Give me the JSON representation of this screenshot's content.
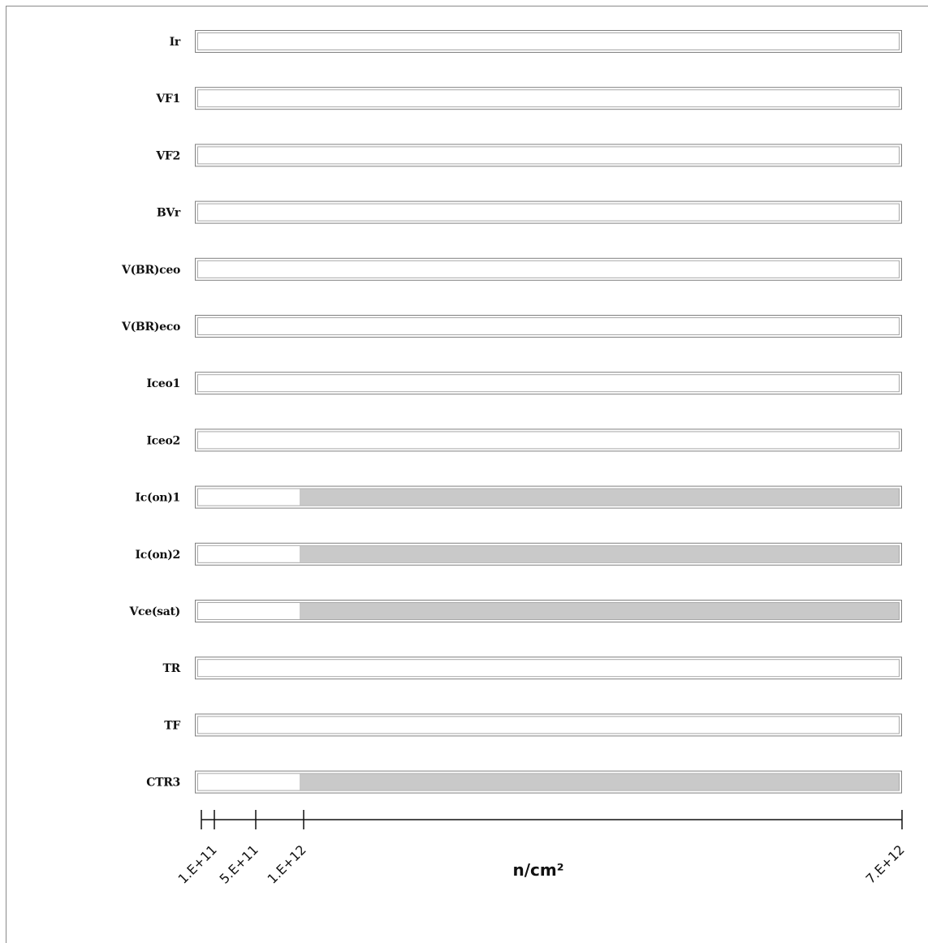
{
  "chart_data": {
    "type": "bar",
    "orientation": "horizontal",
    "xlabel": "n/cm²",
    "x_ticks": [
      "1.E+11",
      "5.E+11",
      "1.E+12",
      "7.E+12"
    ],
    "x_tick_values": [
      100000000000.0,
      500000000000.0,
      1000000000000.0,
      7000000000000.0
    ],
    "x_range": [
      100000000000.0,
      7000000000000.0
    ],
    "categories": [
      "Ir",
      "VF1",
      "VF2",
      "BVr",
      "V(BR)ceo",
      "V(BR)eco",
      "Iceo1",
      "Iceo2",
      "Ic(on)1",
      "Ic(on)2",
      "Vce(sat)",
      "TR",
      "TF",
      "CTR3"
    ],
    "failure_start": [
      null,
      null,
      null,
      null,
      null,
      null,
      null,
      null,
      1000000000000.0,
      1000000000000.0,
      1000000000000.0,
      null,
      null,
      1000000000000.0
    ],
    "colors": {
      "fail": "#c9c9c9",
      "pass": "#ffffff",
      "axis": "#111111",
      "bar_border": "#7f7f7f"
    },
    "grid": false,
    "legend": "none"
  }
}
